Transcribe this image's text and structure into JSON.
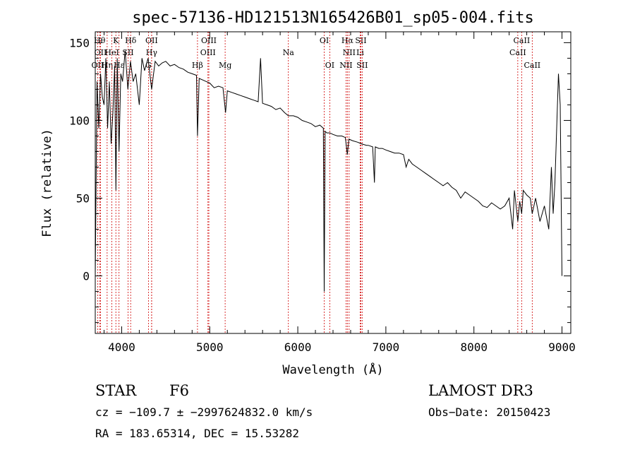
{
  "chart_data": {
    "type": "line",
    "title": "spec-57136-HD121513N165426B01_sp05-004.fits",
    "xlabel": "Wavelength (Å)",
    "ylabel": "Flux (relative)",
    "xlim": [
      3700,
      9100
    ],
    "ylim": [
      -37,
      157
    ],
    "x_ticks": [
      4000,
      5000,
      6000,
      7000,
      8000,
      9000
    ],
    "x_tick_labels": [
      "4000",
      "5000",
      "6000",
      "7000",
      "8000",
      "9000"
    ],
    "y_ticks": [
      0,
      50,
      100,
      150
    ],
    "y_tick_labels": [
      "0",
      "50",
      "100",
      "150"
    ],
    "grid": false,
    "series": [
      {
        "name": "flux",
        "x": [
          3700,
          3720,
          3740,
          3760,
          3780,
          3800,
          3820,
          3840,
          3860,
          3880,
          3900,
          3920,
          3935,
          3950,
          3970,
          3990,
          4010,
          4040,
          4070,
          4100,
          4130,
          4160,
          4200,
          4230,
          4260,
          4300,
          4340,
          4380,
          4420,
          4460,
          4500,
          4550,
          4600,
          4650,
          4700,
          4750,
          4800,
          4850,
          4861,
          4880,
          4920,
          4960,
          5000,
          5050,
          5100,
          5150,
          5180,
          5200,
          5250,
          5300,
          5350,
          5400,
          5450,
          5500,
          5550,
          5577,
          5600,
          5650,
          5700,
          5750,
          5800,
          5850,
          5893,
          5950,
          6000,
          6050,
          6100,
          6150,
          6200,
          6250,
          6290,
          6300,
          6310,
          6330,
          6363,
          6400,
          6450,
          6500,
          6540,
          6563,
          6580,
          6620,
          6680,
          6720,
          6780,
          6800,
          6850,
          6870,
          6880,
          6920,
          6960,
          7000,
          7050,
          7100,
          7150,
          7200,
          7230,
          7260,
          7300,
          7350,
          7400,
          7450,
          7500,
          7550,
          7600,
          7650,
          7700,
          7750,
          7800,
          7850,
          7900,
          7950,
          8000,
          8050,
          8100,
          8150,
          8200,
          8250,
          8300,
          8350,
          8400,
          8440,
          8460,
          8498,
          8520,
          8542,
          8560,
          8600,
          8640,
          8662,
          8700,
          8750,
          8800,
          8850,
          8880,
          8900,
          8920,
          8940,
          8960,
          8980,
          9000
        ],
        "y": [
          0,
          125,
          95,
          130,
          115,
          110,
          140,
          95,
          125,
          85,
          105,
          135,
          55,
          140,
          80,
          130,
          125,
          145,
          120,
          138,
          125,
          130,
          110,
          140,
          132,
          140,
          120,
          138,
          135,
          137,
          138,
          135,
          136,
          134,
          133,
          131,
          130,
          129,
          90,
          127,
          126,
          125,
          124,
          121,
          122,
          121,
          105,
          119,
          118,
          117,
          116,
          115,
          114,
          113,
          112,
          140,
          111,
          110,
          109,
          107,
          108,
          105,
          103,
          103,
          102,
          100,
          99,
          98,
          96,
          97,
          95,
          -10,
          93,
          92,
          92,
          91,
          90,
          90,
          89,
          78,
          88,
          87,
          86,
          85,
          84,
          84,
          83,
          60,
          83,
          82,
          82,
          81,
          80,
          79,
          79,
          78,
          70,
          75,
          72,
          70,
          68,
          66,
          64,
          62,
          60,
          58,
          60,
          57,
          55,
          50,
          54,
          52,
          50,
          48,
          45,
          44,
          47,
          45,
          43,
          45,
          50,
          30,
          55,
          35,
          48,
          40,
          55,
          52,
          50,
          40,
          50,
          35,
          45,
          30,
          70,
          40,
          60,
          95,
          130,
          110,
          0
        ]
      }
    ],
    "line_markers": [
      {
        "label": "OII",
        "x": 3727,
        "row": 2
      },
      {
        "label": "Hθ",
        "x": 3750,
        "row": 0
      },
      {
        "label": "OII",
        "x": 3760,
        "row": 1
      },
      {
        "label": "Hη",
        "x": 3835,
        "row": 2
      },
      {
        "label": "K",
        "x": 3934,
        "row": 0
      },
      {
        "label": "HeI",
        "x": 3889,
        "row": 1
      },
      {
        "label": "Hε",
        "x": 3970,
        "row": 2
      },
      {
        "label": "Hδ",
        "x": 4102,
        "row": 0
      },
      {
        "label": "SII",
        "x": 4072,
        "row": 1
      },
      {
        "label": "OII",
        "x": 4340,
        "row": 0
      },
      {
        "label": "Hγ",
        "x": 4340,
        "row": 1
      },
      {
        "label": "G",
        "x": 4304,
        "row": 2
      },
      {
        "label": "Hβ",
        "x": 4861,
        "row": 2
      },
      {
        "label": "OIII",
        "x": 4990,
        "row": 0
      },
      {
        "label": "OIII",
        "x": 4980,
        "row": 1
      },
      {
        "label": "Mg",
        "x": 5175,
        "row": 2
      },
      {
        "label": "Na",
        "x": 5893,
        "row": 1
      },
      {
        "label": "OI",
        "x": 6300,
        "row": 0
      },
      {
        "label": "OI",
        "x": 6363,
        "row": 2
      },
      {
        "label": "Hα",
        "x": 6563,
        "row": 0
      },
      {
        "label": "SII",
        "x": 6716,
        "row": 0
      },
      {
        "label": "NII",
        "x": 6583,
        "row": 1
      },
      {
        "label": "Li",
        "x": 6708,
        "row": 1
      },
      {
        "label": "NII",
        "x": 6548,
        "row": 2
      },
      {
        "label": "SII",
        "x": 6731,
        "row": 2
      },
      {
        "label": "CaII",
        "x": 8542,
        "row": 0
      },
      {
        "label": "CaII",
        "x": 8498,
        "row": 1
      },
      {
        "label": "CaII",
        "x": 8662,
        "row": 2
      }
    ],
    "marker_rows": [
      [
        "OII",
        "Hθ",
        "K",
        "Hδ",
        "OIII",
        "OI",
        "Hα",
        "SII",
        "CaII"
      ]
    ]
  },
  "footer": {
    "object_class": "STAR",
    "subclass": "F6",
    "survey": "LAMOST DR3",
    "cz": "cz = −109.7 ± −2997624832.0 km/s",
    "obs_date": "Obs−Date: 20150423",
    "radec": "RA = 183.65314, DEC =  15.53282"
  },
  "colors": {
    "spectrum": "#000000",
    "marker_line": "#d00000",
    "axis": "#000000"
  }
}
